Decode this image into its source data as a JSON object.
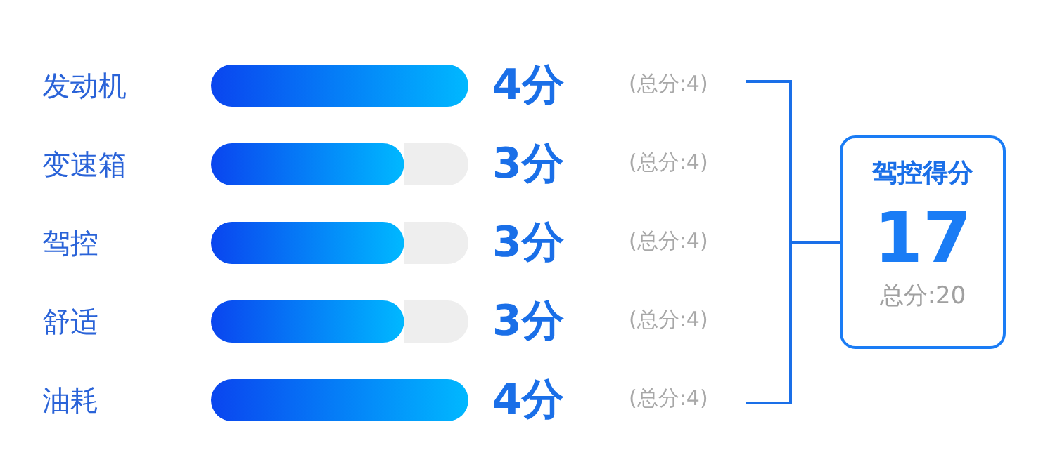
{
  "chart_data": {
    "type": "bar",
    "orientation": "horizontal",
    "categories": [
      "发动机",
      "变速箱",
      "驾控",
      "舒适",
      "油耗"
    ],
    "values": [
      4,
      3,
      3,
      3,
      4
    ],
    "value_labels": [
      "4分",
      "3分",
      "3分",
      "3分",
      "4分"
    ],
    "color": "#0a45ef",
    "xlim": [
      0,
      4
    ],
    "tick_labels": "y",
    "grid": false,
    "annotations": [
      "(总分:4)",
      "(总分:4)",
      "(总分:4)",
      "(总分:4)",
      "(总分:4)",
      "驾控得分",
      "17",
      "总分:20"
    ]
  }
}
